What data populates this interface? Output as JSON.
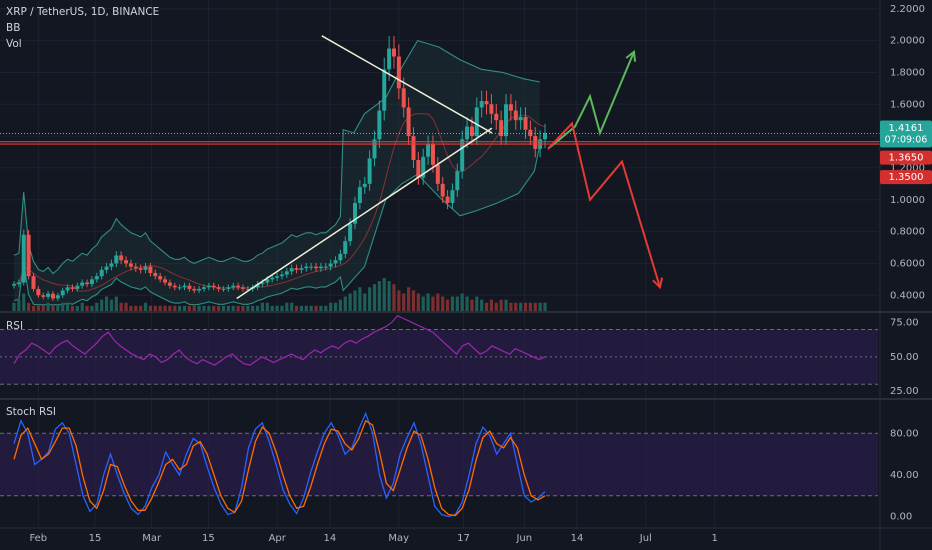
{
  "header": {
    "symbol": "XRP / TetherUS, 1D, BINANCE",
    "indicators": [
      "BB",
      "Vol"
    ]
  },
  "price_badges": {
    "last": "1.4161",
    "countdown": "07:09:06",
    "level_upper": "1.3650",
    "level_lower": "1.3500"
  },
  "panes": {
    "rsi_label": "RSI",
    "stoch_label": "Stoch RSI"
  },
  "colors": {
    "background": "#131722",
    "up": "#26a69a",
    "down": "#ef5350",
    "bb": "#2e8f84",
    "trendline": "#f0eed8",
    "bull_arrow": "#5cb85c",
    "bear_arrow": "#e53935",
    "rsi_line": "#9c27b0",
    "rsi_band": "#2a1e4a",
    "stoch_k": "#2962ff",
    "stoch_d": "#ff6d00",
    "badge_teal": "#26a69a",
    "badge_red": "#d32f2f"
  },
  "chart_data": [
    {
      "type": "candlestick",
      "title": "XRP / TetherUS, 1D, BINANCE",
      "ylim": [
        0.32,
        2.23
      ],
      "y_ticks": [
        "2.2000",
        "2.0000",
        "1.8000",
        "1.6000",
        "1.4000",
        "1.2000",
        "1.0000",
        "0.8000",
        "0.6000",
        "0.4000"
      ],
      "x_ticks": [
        "Feb",
        "15",
        "Mar",
        "15",
        "Apr",
        "14",
        "May",
        "17",
        "Jun",
        "14",
        "Jul",
        "1"
      ],
      "horizontal_levels": [
        1.365,
        1.35
      ],
      "price_path": [
        0.47,
        0.48,
        0.78,
        0.52,
        0.44,
        0.4,
        0.39,
        0.41,
        0.38,
        0.4,
        0.43,
        0.45,
        0.44,
        0.46,
        0.48,
        0.47,
        0.5,
        0.52,
        0.56,
        0.58,
        0.6,
        0.65,
        0.62,
        0.6,
        0.58,
        0.57,
        0.56,
        0.58,
        0.54,
        0.52,
        0.5,
        0.48,
        0.46,
        0.45,
        0.45,
        0.46,
        0.44,
        0.43,
        0.44,
        0.45,
        0.46,
        0.45,
        0.44,
        0.44,
        0.45,
        0.46,
        0.45,
        0.44,
        0.44,
        0.45,
        0.47,
        0.48,
        0.5,
        0.51,
        0.52,
        0.53,
        0.55,
        0.57,
        0.56,
        0.57,
        0.58,
        0.58,
        0.57,
        0.58,
        0.58,
        0.6,
        0.62,
        0.66,
        0.74,
        0.85,
        0.98,
        1.08,
        1.1,
        1.26,
        1.38,
        1.56,
        1.82,
        1.95,
        1.9,
        1.7,
        1.58,
        1.4,
        1.25,
        1.14,
        1.27,
        1.35,
        1.22,
        1.1,
        1.02,
        0.98,
        1.06,
        1.18,
        1.38,
        1.46,
        1.4,
        1.58,
        1.62,
        1.6,
        1.54,
        1.5,
        1.4,
        1.6,
        1.56,
        1.5,
        1.52,
        1.44,
        1.4,
        1.32,
        1.38,
        1.42
      ],
      "bollinger_upper": [
        [
          0.62,
          1.44
        ],
        [
          0.64,
          1.42
        ],
        [
          0.66,
          1.54
        ],
        [
          0.7,
          1.64
        ],
        [
          0.73,
          1.83
        ],
        [
          0.76,
          2.0
        ],
        [
          0.8,
          1.96
        ],
        [
          0.84,
          1.88
        ],
        [
          0.88,
          1.82
        ],
        [
          0.92,
          1.8
        ],
        [
          0.96,
          1.76
        ],
        [
          0.99,
          1.74
        ]
      ],
      "bollinger_lower": [
        [
          0.62,
          0.43
        ],
        [
          0.66,
          0.58
        ],
        [
          0.7,
          1.0
        ],
        [
          0.73,
          1.1
        ],
        [
          0.76,
          1.16
        ],
        [
          0.8,
          1.02
        ],
        [
          0.84,
          0.9
        ],
        [
          0.87,
          0.93
        ],
        [
          0.91,
          0.98
        ],
        [
          0.95,
          1.04
        ],
        [
          0.98,
          1.18
        ],
        [
          0.99,
          1.34
        ]
      ],
      "trendlines": [
        {
          "from": {
            "x_date": "Apr 12",
            "y": 2.03
          },
          "to": {
            "x_date": "May 24",
            "y": 1.42
          }
        },
        {
          "from": {
            "x_date": "Mar 22",
            "y": 0.38
          },
          "to": {
            "x_date": "May 24",
            "y": 1.45
          }
        }
      ],
      "projections": [
        {
          "name": "bullish",
          "y_path": [
            1.32,
            1.46,
            1.65,
            1.42,
            1.93
          ]
        },
        {
          "name": "bearish",
          "y_path": [
            1.32,
            1.48,
            1.0,
            1.24,
            0.45
          ]
        }
      ]
    },
    {
      "type": "bar",
      "name": "Vol",
      "values": [
        3,
        4,
        6,
        3,
        2,
        2,
        2,
        3,
        2,
        2,
        3,
        3,
        2,
        2,
        3,
        2,
        2,
        3,
        4,
        5,
        4,
        5,
        3,
        3,
        2,
        2,
        2,
        3,
        2,
        2,
        2,
        2,
        2,
        2,
        2,
        2,
        2,
        2,
        2,
        2,
        2,
        2,
        2,
        2,
        2,
        2,
        2,
        2,
        2,
        2,
        2,
        3,
        3,
        2,
        2,
        2,
        3,
        3,
        2,
        2,
        2,
        2,
        2,
        2,
        2,
        3,
        3,
        4,
        5,
        6,
        7,
        8,
        6,
        8,
        9,
        10,
        11,
        10,
        9,
        7,
        6,
        8,
        7,
        6,
        5,
        6,
        5,
        6,
        5,
        4,
        5,
        5,
        6,
        5,
        4,
        5,
        4,
        3,
        4,
        3,
        4,
        4,
        3,
        3,
        3,
        3,
        3,
        3,
        3,
        3
      ]
    },
    {
      "type": "line",
      "name": "RSI",
      "ylim": [
        20,
        82
      ],
      "y_ticks": [
        "75.00",
        "50.00",
        "25.00"
      ],
      "band": [
        30,
        70
      ],
      "values": [
        45,
        52,
        55,
        60,
        58,
        55,
        52,
        57,
        60,
        62,
        58,
        55,
        52,
        56,
        60,
        65,
        68,
        62,
        58,
        55,
        52,
        50,
        48,
        52,
        50,
        46,
        48,
        52,
        55,
        50,
        47,
        45,
        48,
        46,
        44,
        47,
        50,
        52,
        48,
        45,
        44,
        47,
        50,
        48,
        46,
        48,
        50,
        52,
        50,
        48,
        52,
        55,
        53,
        56,
        58,
        56,
        60,
        62,
        60,
        63,
        65,
        68,
        70,
        72,
        75,
        80,
        78,
        76,
        74,
        72,
        70,
        68,
        64,
        60,
        56,
        52,
        58,
        60,
        56,
        52,
        54,
        58,
        56,
        54,
        52,
        56,
        54,
        52,
        50,
        48,
        50
      ]
    },
    {
      "type": "line",
      "name": "Stoch RSI",
      "ylim": [
        -10,
        112
      ],
      "y_ticks": [
        "80.00",
        "40.00",
        "0.00"
      ],
      "band": [
        20,
        80
      ],
      "series": [
        {
          "name": "K",
          "values": [
            70,
            92,
            80,
            50,
            55,
            62,
            84,
            90,
            80,
            50,
            20,
            5,
            12,
            40,
            60,
            40,
            22,
            8,
            2,
            10,
            28,
            40,
            62,
            50,
            40,
            60,
            75,
            70,
            48,
            28,
            12,
            2,
            4,
            28,
            66,
            84,
            90,
            72,
            50,
            26,
            12,
            3,
            18,
            42,
            62,
            80,
            90,
            78,
            60,
            66,
            84,
            99,
            80,
            40,
            18,
            32,
            60,
            76,
            90,
            70,
            40,
            10,
            2,
            0,
            2,
            14,
            40,
            70,
            86,
            78,
            60,
            70,
            80,
            50,
            20,
            14,
            18,
            24
          ]
        },
        {
          "name": "D",
          "values": [
            55,
            78,
            85,
            70,
            55,
            60,
            72,
            85,
            85,
            68,
            38,
            15,
            8,
            25,
            50,
            48,
            30,
            15,
            6,
            6,
            18,
            33,
            50,
            55,
            45,
            50,
            68,
            72,
            60,
            40,
            20,
            8,
            4,
            15,
            45,
            72,
            86,
            80,
            62,
            40,
            20,
            8,
            10,
            28,
            50,
            70,
            84,
            82,
            70,
            64,
            75,
            92,
            88,
            62,
            32,
            25,
            45,
            66,
            82,
            78,
            56,
            28,
            8,
            2,
            1,
            8,
            26,
            54,
            76,
            82,
            70,
            66,
            76,
            66,
            40,
            20,
            16,
            20
          ]
        }
      ]
    }
  ]
}
